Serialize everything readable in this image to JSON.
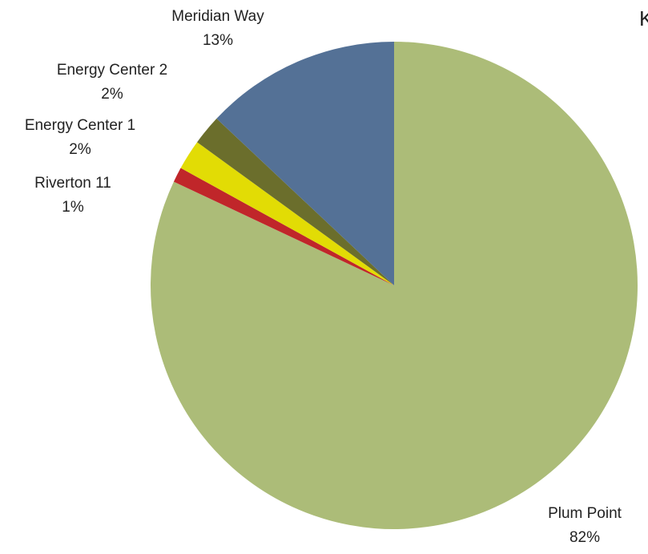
{
  "chart_data": {
    "type": "pie",
    "title": "K",
    "slices": [
      {
        "label": "Plum Point",
        "value": 82,
        "display": "82%",
        "color": "#acbc78"
      },
      {
        "label": "Riverton 11",
        "value": 1,
        "display": "1%",
        "color": "#c0262a"
      },
      {
        "label": "Energy Center 1",
        "value": 2,
        "display": "2%",
        "color": "#e2dc05"
      },
      {
        "label": "Energy Center 2",
        "value": 2,
        "display": "2%",
        "color": "#6b6e2c"
      },
      {
        "label": "Meridian Way",
        "value": 13,
        "display": "13%",
        "color": "#547196"
      }
    ]
  }
}
